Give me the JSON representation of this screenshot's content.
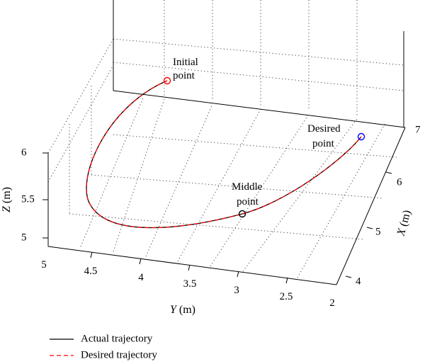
{
  "chart_data": {
    "type": "line3d",
    "xlabel_main": "X",
    "xlabel_unit": " (m)",
    "ylabel_main": "Y",
    "ylabel_unit": " (m)",
    "zlabel_main": "Z",
    "zlabel_unit": " (m)",
    "x_ticks": [
      "4",
      "5",
      "6",
      "7"
    ],
    "y_ticks": [
      "5",
      "4.5",
      "4",
      "3.5",
      "3",
      "2.5",
      "2"
    ],
    "z_ticks": [
      "5",
      "5.5",
      "6"
    ],
    "xlim": [
      4,
      7
    ],
    "ylim": [
      2,
      5
    ],
    "zlim": [
      5,
      6
    ],
    "grid": true,
    "legend_position": "bottom-left",
    "series": [
      {
        "name": "Actual trajectory",
        "color": "#000000",
        "style": "solid"
      },
      {
        "name": "Desired trajectory",
        "color": "#ff0000",
        "style": "dashed"
      }
    ],
    "annotations": {
      "initial": {
        "line1": "Initial",
        "line2": "point",
        "marker_color": "#ff0000"
      },
      "middle": {
        "line1": "Middle",
        "line2": "point",
        "marker_color": "#000000"
      },
      "desired": {
        "line1": "Desired",
        "line2": "point",
        "marker_color": "#0000ff"
      }
    }
  }
}
